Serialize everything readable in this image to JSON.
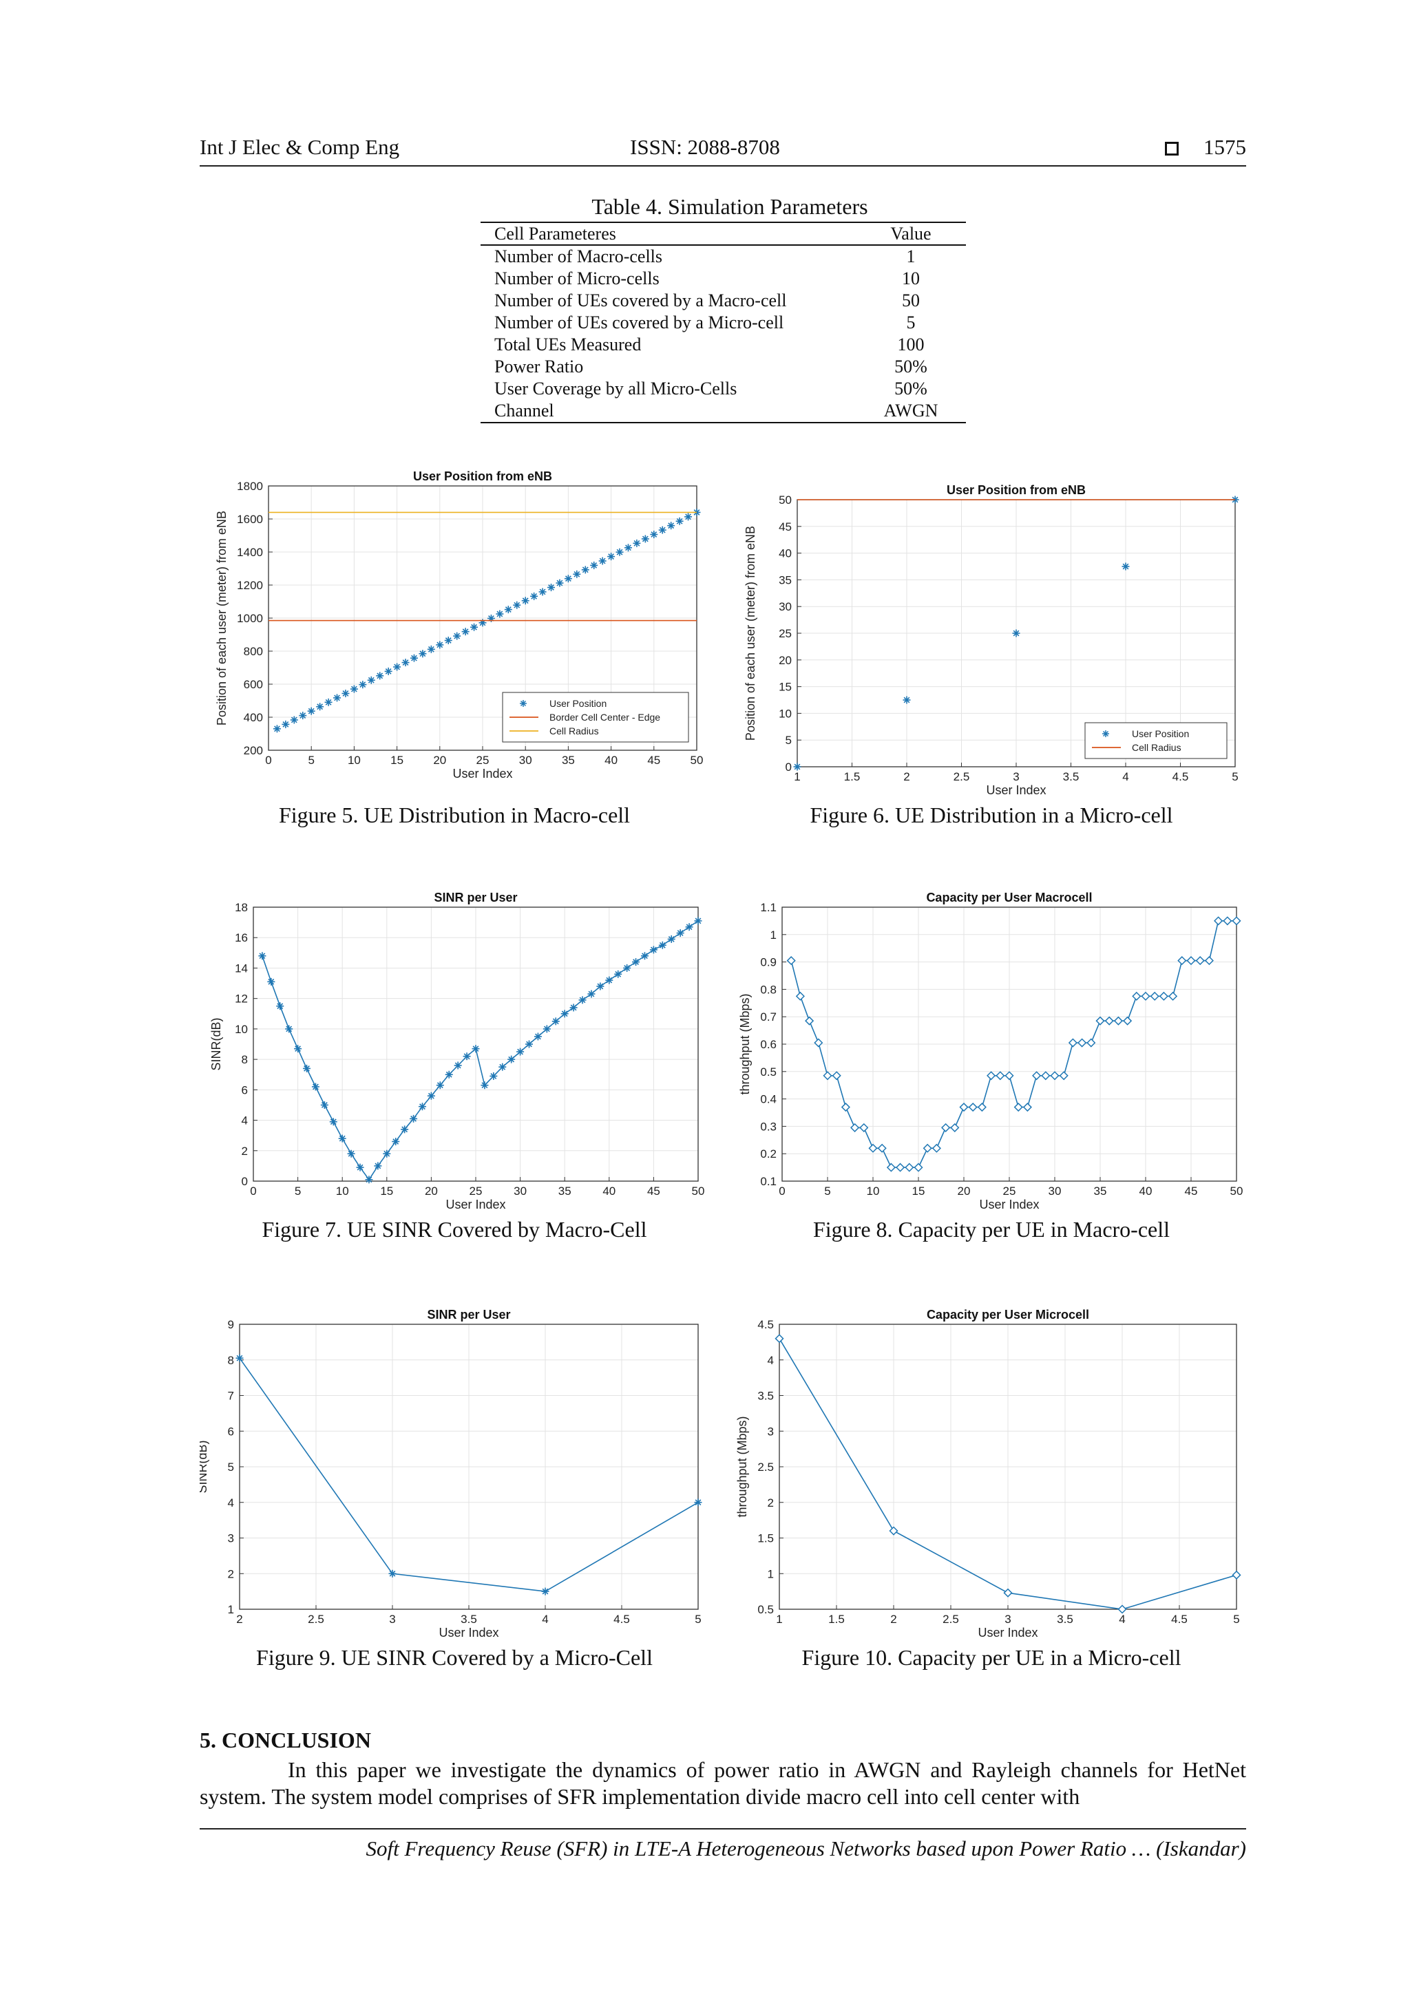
{
  "header": {
    "journal": "Int J Elec & Comp Eng",
    "issn": "ISSN: 2088-8708",
    "page": "1575"
  },
  "table": {
    "caption": "Table 4. Simulation Parameters",
    "col_param": "Cell Parameteres",
    "col_value": "Value",
    "rows": [
      {
        "param": "Number of Macro-cells",
        "value": "1"
      },
      {
        "param": "Number of Micro-cells",
        "value": "10"
      },
      {
        "param": "Number of UEs covered by a Macro-cell",
        "value": "50"
      },
      {
        "param": "Number of UEs covered by a Micro-cell",
        "value": "5"
      },
      {
        "param": "Total UEs Measured",
        "value": "100"
      },
      {
        "param": "Power Ratio",
        "value": "50%"
      },
      {
        "param": "User Coverage by all Micro-Cells",
        "value": "50%"
      },
      {
        "param": "Channel",
        "value": "AWGN"
      }
    ]
  },
  "figures": {
    "fig5": "Figure 5. UE Distribution in Macro-cell",
    "fig6": "Figure 6. UE Distribution in a Micro-cell",
    "fig7": "Figure 7. UE SINR Covered by Macro-Cell",
    "fig8": "Figure 8. Capacity per UE in Macro-cell",
    "fig9": "Figure 9. UE SINR Covered by a Micro-Cell",
    "fig10": "Figure 10. Capacity per UE in a Micro-cell"
  },
  "chart_data": [
    {
      "id": "fig5",
      "type": "scatter",
      "title": "User Position from eNB",
      "xlabel": "User Index",
      "ylabel": "Position of each user (meter) from eNB",
      "xlim": [
        0,
        50
      ],
      "ylim": [
        200,
        1800
      ],
      "xticks": [
        0,
        5,
        10,
        15,
        20,
        25,
        30,
        35,
        40,
        45,
        50
      ],
      "yticks": [
        200,
        400,
        600,
        800,
        1000,
        1200,
        1400,
        1600,
        1800
      ],
      "grid": true,
      "legend_position": "bottom-right",
      "series": [
        {
          "name": "User Position",
          "marker": "star",
          "line": false,
          "color": "#1f77b4",
          "x": [
            1,
            50
          ],
          "y": [
            330,
            1640
          ],
          "points": 50
        },
        {
          "name": "Border Cell Center - Edge",
          "marker": "none",
          "line": true,
          "color": "#d95319",
          "x": [
            0,
            50
          ],
          "y": [
            985,
            985
          ]
        },
        {
          "name": "Cell Radius",
          "marker": "none",
          "line": true,
          "color": "#edb120",
          "x": [
            0,
            50
          ],
          "y": [
            1640,
            1640
          ]
        }
      ]
    },
    {
      "id": "fig6",
      "type": "scatter",
      "title": "User Position from eNB",
      "xlabel": "User Index",
      "ylabel": "Position of each user (meter) from eNB",
      "xlim": [
        1,
        5
      ],
      "ylim": [
        0,
        50
      ],
      "xticks": [
        1,
        1.5,
        2,
        2.5,
        3,
        3.5,
        4,
        4.5,
        5
      ],
      "yticks": [
        0,
        5,
        10,
        15,
        20,
        25,
        30,
        35,
        40,
        45,
        50
      ],
      "grid": true,
      "legend_position": "bottom-right",
      "series": [
        {
          "name": "User Position",
          "marker": "star",
          "line": false,
          "color": "#1f77b4",
          "x": [
            1,
            2,
            3,
            4,
            5
          ],
          "y": [
            0,
            12.5,
            25,
            37.5,
            50
          ]
        },
        {
          "name": "Cell Radius",
          "marker": "none",
          "line": true,
          "color": "#d95319",
          "x": [
            1,
            5
          ],
          "y": [
            50,
            50
          ]
        }
      ]
    },
    {
      "id": "fig7",
      "type": "line",
      "title": "SINR per User",
      "xlabel": "User Index",
      "ylabel": "SINR(dB)",
      "xlim": [
        0,
        50
      ],
      "ylim": [
        0,
        18
      ],
      "xticks": [
        0,
        5,
        10,
        15,
        20,
        25,
        30,
        35,
        40,
        45,
        50
      ],
      "yticks": [
        0,
        2,
        4,
        6,
        8,
        10,
        12,
        14,
        16,
        18
      ],
      "grid": true,
      "series": [
        {
          "marker": "star",
          "color": "#1f77b4",
          "x": [
            1,
            2,
            3,
            4,
            5,
            6,
            7,
            8,
            9,
            10,
            11,
            12,
            13,
            14,
            15,
            16,
            17,
            18,
            19,
            20,
            21,
            22,
            23,
            24,
            25,
            26,
            27,
            28,
            29,
            30,
            31,
            32,
            33,
            34,
            35,
            36,
            37,
            38,
            39,
            40,
            41,
            42,
            43,
            44,
            45,
            46,
            47,
            48,
            49,
            50
          ],
          "y": [
            14.8,
            13.1,
            11.5,
            10.0,
            8.7,
            7.4,
            6.2,
            5.0,
            3.9,
            2.8,
            1.8,
            0.9,
            0.1,
            1.0,
            1.8,
            2.6,
            3.4,
            4.1,
            4.9,
            5.6,
            6.3,
            7.0,
            7.6,
            8.2,
            8.7,
            6.3,
            6.9,
            7.5,
            8.0,
            8.5,
            9.0,
            9.5,
            10.0,
            10.5,
            11.0,
            11.4,
            11.9,
            12.3,
            12.8,
            13.2,
            13.6,
            14.0,
            14.4,
            14.8,
            15.2,
            15.5,
            15.9,
            16.3,
            16.7,
            17.1
          ]
        }
      ]
    },
    {
      "id": "fig8",
      "type": "line",
      "title": "Capacity per User Macrocell",
      "xlabel": "User Index",
      "ylabel": "throughput (Mbps)",
      "xlim": [
        0,
        50
      ],
      "ylim": [
        0.1,
        1.1
      ],
      "xticks": [
        0,
        5,
        10,
        15,
        20,
        25,
        30,
        35,
        40,
        45,
        50
      ],
      "yticks": [
        0.1,
        0.2,
        0.3,
        0.4,
        0.5,
        0.6,
        0.7,
        0.8,
        0.9,
        1,
        1.1
      ],
      "grid": true,
      "series": [
        {
          "marker": "diamond",
          "color": "#1f77b4",
          "x": [
            1,
            2,
            3,
            4,
            5,
            6,
            7,
            8,
            9,
            10,
            11,
            12,
            13,
            14,
            15,
            16,
            17,
            18,
            19,
            20,
            21,
            22,
            23,
            24,
            25,
            26,
            27,
            28,
            29,
            30,
            31,
            32,
            33,
            34,
            35,
            36,
            37,
            38,
            39,
            40,
            41,
            42,
            43,
            44,
            45,
            46,
            47,
            48,
            49,
            50
          ],
          "y": [
            0.905,
            0.775,
            0.685,
            0.605,
            0.485,
            0.485,
            0.37,
            0.295,
            0.295,
            0.22,
            0.22,
            0.15,
            0.15,
            0.15,
            0.15,
            0.22,
            0.22,
            0.295,
            0.295,
            0.37,
            0.37,
            0.37,
            0.485,
            0.485,
            0.485,
            0.37,
            0.37,
            0.485,
            0.485,
            0.485,
            0.485,
            0.605,
            0.605,
            0.605,
            0.685,
            0.685,
            0.685,
            0.685,
            0.775,
            0.775,
            0.775,
            0.775,
            0.775,
            0.905,
            0.905,
            0.905,
            0.905,
            1.05,
            1.05,
            1.05
          ]
        }
      ]
    },
    {
      "id": "fig9",
      "type": "line",
      "title": "SINR per User",
      "xlabel": "User Index",
      "ylabel": "SINR(dB)",
      "xlim": [
        2,
        5
      ],
      "ylim": [
        1,
        9
      ],
      "xticks": [
        2,
        2.5,
        3,
        3.5,
        4,
        4.5,
        5
      ],
      "yticks": [
        1,
        2,
        3,
        4,
        5,
        6,
        7,
        8,
        9
      ],
      "grid": true,
      "series": [
        {
          "marker": "star",
          "color": "#1f77b4",
          "x": [
            2,
            3,
            4,
            5
          ],
          "y": [
            8.05,
            2.0,
            1.5,
            4.0
          ]
        }
      ]
    },
    {
      "id": "fig10",
      "type": "line",
      "title": "Capacity per User Microcell",
      "xlabel": "User Index",
      "ylabel": "throughput (Mbps)",
      "xlim": [
        1,
        5
      ],
      "ylim": [
        0.5,
        4.5
      ],
      "xticks": [
        1,
        1.5,
        2,
        2.5,
        3,
        3.5,
        4,
        4.5,
        5
      ],
      "yticks": [
        0.5,
        1,
        1.5,
        2,
        2.5,
        3,
        3.5,
        4,
        4.5
      ],
      "grid": true,
      "series": [
        {
          "marker": "diamond",
          "color": "#1f77b4",
          "x": [
            1,
            2,
            3,
            4,
            5
          ],
          "y": [
            4.3,
            1.6,
            0.73,
            0.5,
            0.98
          ]
        }
      ]
    }
  ],
  "section": {
    "title": "5.  CONCLUSION",
    "text": "In this paper we investigate the dynamics of power ratio in AWGN and Rayleigh channels for HetNet system. The system model comprises of SFR implementation divide macro cell into cell center with"
  },
  "footer": "Soft Frequency Reuse (SFR) in LTE-A Heterogeneous Networks based upon Power Ratio … (Iskandar)"
}
